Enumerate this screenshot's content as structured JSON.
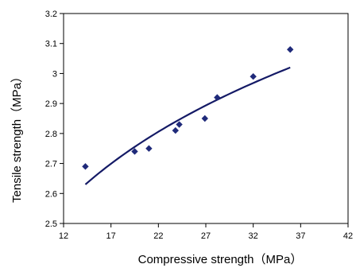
{
  "chart_data": {
    "type": "scatter",
    "xlabel": "Compressive strength（MPa）",
    "ylabel": "Tensile strength（MPa）",
    "xlim": [
      12,
      42
    ],
    "ylim": [
      2.5,
      3.2
    ],
    "x_ticks": [
      "12",
      "17",
      "22",
      "27",
      "32",
      "37",
      "42"
    ],
    "y_ticks": [
      "2.5",
      "2.6",
      "2.7",
      "2.8",
      "2.9",
      "3",
      "3.1",
      "3.2"
    ],
    "grid": false,
    "legend": "none",
    "series": [
      {
        "marker": "diamond",
        "color": "#1f2a7a",
        "points": [
          {
            "x": 14.3,
            "y": 2.69
          },
          {
            "x": 19.5,
            "y": 2.74
          },
          {
            "x": 21.0,
            "y": 2.75
          },
          {
            "x": 23.8,
            "y": 2.81
          },
          {
            "x": 24.2,
            "y": 2.83
          },
          {
            "x": 26.9,
            "y": 2.85
          },
          {
            "x": 28.2,
            "y": 2.92
          },
          {
            "x": 32.0,
            "y": 2.99
          },
          {
            "x": 35.9,
            "y": 3.08
          }
        ]
      }
    ],
    "trendline": {
      "type": "power",
      "color": "#141a66",
      "x_start": 14.3,
      "x_end": 35.9,
      "y_start": 2.63,
      "y_end": 3.02
    }
  }
}
